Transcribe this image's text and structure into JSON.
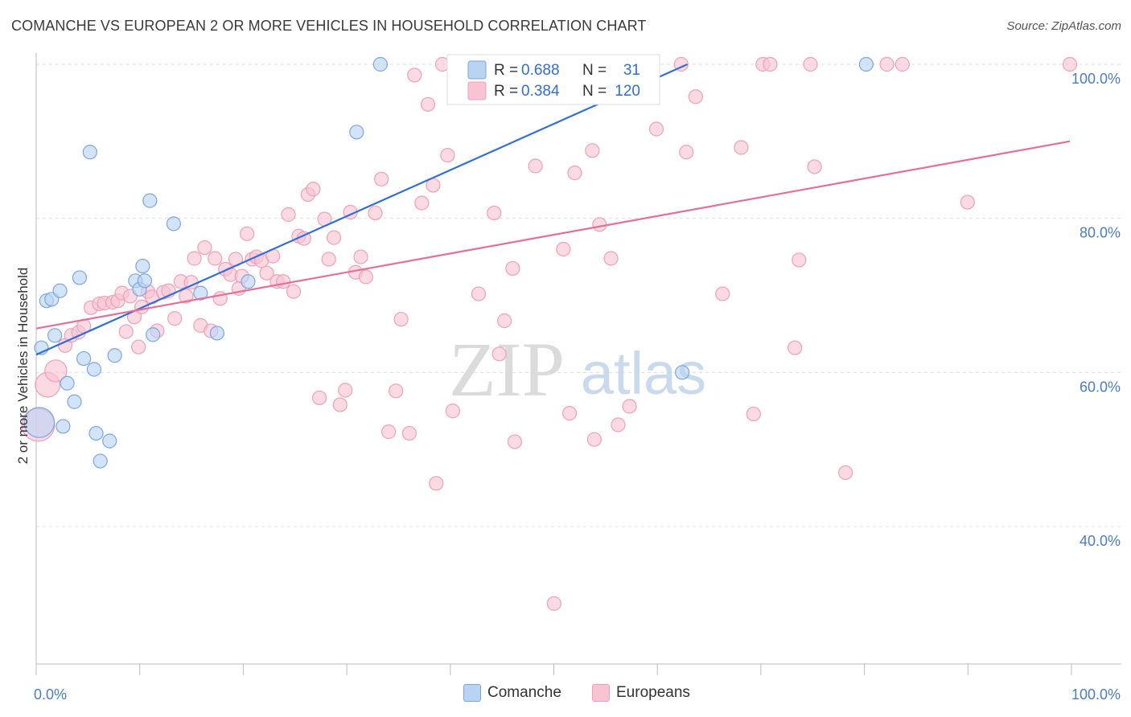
{
  "title": "COMANCHE VS EUROPEAN 2 OR MORE VEHICLES IN HOUSEHOLD CORRELATION CHART",
  "source": "Source: ZipAtlas.com",
  "watermark": {
    "zip": "ZIP",
    "atlas": "atlas"
  },
  "colors": {
    "comanche_fill": "#b9d3f3",
    "comanche_stroke": "#7aa6e0",
    "comanche_line": "#2f6fd6",
    "europeans_fill": "#f8c4d4",
    "europeans_stroke": "#eea0b8",
    "europeans_line": "#e4709a",
    "tick_label": "#4a7cc7",
    "grid": "#dddddd"
  },
  "stats": {
    "r_label": "R =",
    "n_label": "N =",
    "comanche": {
      "r": "0.688",
      "n": "31"
    },
    "europeans": {
      "r": "0.384",
      "n": "120"
    }
  },
  "chart_data": {
    "type": "scatter",
    "title": "COMANCHE VS EUROPEAN 2 OR MORE VEHICLES IN HOUSEHOLD CORRELATION CHART",
    "xlabel": "",
    "ylabel": "2 or more Vehicles in Household",
    "xlim": [
      0,
      105
    ],
    "ylim": [
      19,
      103
    ],
    "x_tick_labels": [
      {
        "value": 0,
        "label": "0.0%"
      },
      {
        "value": 100,
        "label": "100.0%"
      }
    ],
    "y_tick_labels": [
      {
        "value": 40,
        "label": "40.0%"
      },
      {
        "value": 60,
        "label": "60.0%"
      },
      {
        "value": 80,
        "label": "80.0%"
      },
      {
        "value": 100,
        "label": "100.0%"
      }
    ],
    "grid": true,
    "legend": "top-center and bottom",
    "series": [
      {
        "name": "Comanche",
        "trendline": {
          "x": [
            0,
            63
          ],
          "y": [
            62.3,
            100
          ]
        },
        "points": [
          [
            0.3,
            53.5,
            2.2
          ],
          [
            0.5,
            63.2,
            1
          ],
          [
            1.0,
            69.3,
            1
          ],
          [
            1.5,
            69.5,
            1
          ],
          [
            1.8,
            64.8,
            1
          ],
          [
            2.3,
            70.6,
            1
          ],
          [
            2.6,
            53.0,
            1
          ],
          [
            3.0,
            58.6,
            1
          ],
          [
            3.7,
            56.2,
            1
          ],
          [
            4.2,
            72.3,
            1
          ],
          [
            4.6,
            61.8,
            1
          ],
          [
            5.2,
            88.6,
            1
          ],
          [
            5.6,
            60.4,
            1
          ],
          [
            5.8,
            52.1,
            1
          ],
          [
            6.2,
            48.5,
            1
          ],
          [
            7.1,
            51.1,
            1
          ],
          [
            7.6,
            62.2,
            1
          ],
          [
            9.6,
            71.9,
            1
          ],
          [
            10.0,
            70.8,
            1
          ],
          [
            10.3,
            73.8,
            1
          ],
          [
            10.5,
            71.9,
            1
          ],
          [
            11.0,
            82.3,
            1
          ],
          [
            11.3,
            64.9,
            1
          ],
          [
            13.3,
            79.3,
            1
          ],
          [
            15.9,
            70.3,
            1
          ],
          [
            17.5,
            65.1,
            1
          ],
          [
            20.5,
            71.8,
            1
          ],
          [
            31.0,
            91.2,
            1
          ],
          [
            33.3,
            100.0,
            1
          ],
          [
            80.3,
            100.0,
            1
          ],
          [
            62.5,
            60.0,
            1
          ]
        ]
      },
      {
        "name": "Europeans",
        "trendline": {
          "x": [
            0,
            100
          ],
          "y": [
            65.7,
            90.0
          ]
        },
        "points": [
          [
            0.2,
            53.2,
            2.4
          ],
          [
            1.1,
            58.4,
            1.8
          ],
          [
            1.9,
            60.2,
            1.6
          ],
          [
            2.8,
            63.5,
            1
          ],
          [
            3.4,
            64.8,
            1
          ],
          [
            4.1,
            65.2,
            1
          ],
          [
            4.6,
            66.0,
            1
          ],
          [
            5.3,
            68.4,
            1
          ],
          [
            6.1,
            68.9,
            1
          ],
          [
            6.6,
            69.0,
            1
          ],
          [
            7.4,
            69.1,
            1
          ],
          [
            7.9,
            69.3,
            1
          ],
          [
            8.3,
            70.3,
            1
          ],
          [
            8.7,
            65.3,
            1
          ],
          [
            9.1,
            69.9,
            1
          ],
          [
            9.5,
            67.2,
            1
          ],
          [
            9.9,
            63.3,
            1
          ],
          [
            10.2,
            68.5,
            1
          ],
          [
            10.8,
            70.5,
            1
          ],
          [
            11.2,
            69.8,
            1
          ],
          [
            11.7,
            65.4,
            1
          ],
          [
            12.3,
            70.4,
            1
          ],
          [
            12.8,
            70.6,
            1
          ],
          [
            13.4,
            67.0,
            1
          ],
          [
            14.0,
            71.8,
            1
          ],
          [
            14.5,
            69.9,
            1
          ],
          [
            15.0,
            71.7,
            1
          ],
          [
            15.3,
            74.8,
            1
          ],
          [
            15.9,
            66.1,
            1
          ],
          [
            16.3,
            76.2,
            1
          ],
          [
            16.9,
            65.4,
            1
          ],
          [
            17.3,
            74.8,
            1
          ],
          [
            17.8,
            69.6,
            1
          ],
          [
            18.3,
            73.4,
            1
          ],
          [
            18.8,
            72.7,
            1
          ],
          [
            19.3,
            74.7,
            1
          ],
          [
            19.6,
            70.9,
            1
          ],
          [
            19.9,
            72.5,
            1
          ],
          [
            20.4,
            78.0,
            1
          ],
          [
            20.9,
            74.7,
            1
          ],
          [
            21.3,
            75.0,
            1
          ],
          [
            21.8,
            74.5,
            1
          ],
          [
            22.3,
            72.9,
            1
          ],
          [
            22.9,
            75.1,
            1
          ],
          [
            23.3,
            71.8,
            1
          ],
          [
            23.9,
            71.8,
            1
          ],
          [
            24.4,
            80.5,
            1
          ],
          [
            24.9,
            70.5,
            1
          ],
          [
            25.4,
            77.7,
            1
          ],
          [
            25.9,
            77.4,
            1
          ],
          [
            26.3,
            83.1,
            1
          ],
          [
            26.8,
            83.8,
            1
          ],
          [
            27.4,
            56.7,
            1
          ],
          [
            27.9,
            79.9,
            1
          ],
          [
            28.3,
            74.7,
            1
          ],
          [
            28.8,
            77.5,
            1
          ],
          [
            29.4,
            55.8,
            1
          ],
          [
            29.9,
            57.7,
            1
          ],
          [
            30.4,
            80.8,
            1
          ],
          [
            30.9,
            73.0,
            1
          ],
          [
            31.4,
            75.0,
            1
          ],
          [
            31.9,
            72.4,
            1
          ],
          [
            32.8,
            80.7,
            1
          ],
          [
            33.4,
            85.1,
            1
          ],
          [
            34.1,
            52.3,
            1
          ],
          [
            34.8,
            57.6,
            1
          ],
          [
            35.3,
            66.9,
            1
          ],
          [
            36.1,
            52.1,
            1
          ],
          [
            36.6,
            98.6,
            1
          ],
          [
            37.3,
            82.0,
            1
          ],
          [
            37.9,
            94.8,
            1
          ],
          [
            38.4,
            84.3,
            1
          ],
          [
            38.7,
            45.6,
            1
          ],
          [
            39.3,
            100.0,
            1
          ],
          [
            39.8,
            88.2,
            1
          ],
          [
            40.3,
            55.0,
            1
          ],
          [
            42.1,
            100.0,
            1
          ],
          [
            42.8,
            70.2,
            1
          ],
          [
            43.3,
            100.0,
            1
          ],
          [
            44.3,
            80.7,
            1
          ],
          [
            44.8,
            62.4,
            1
          ],
          [
            45.3,
            66.7,
            1
          ],
          [
            46.1,
            73.5,
            1
          ],
          [
            46.3,
            51.0,
            1
          ],
          [
            47.3,
            100.0,
            1
          ],
          [
            48.3,
            86.8,
            1
          ],
          [
            49.5,
            100.0,
            1
          ],
          [
            50.1,
            30.0,
            1
          ],
          [
            51.0,
            76.0,
            1
          ],
          [
            51.6,
            54.7,
            1
          ],
          [
            52.1,
            85.9,
            1
          ],
          [
            52.4,
            100.0,
            1
          ],
          [
            53.8,
            88.8,
            1
          ],
          [
            54.0,
            51.3,
            1
          ],
          [
            54.5,
            79.2,
            1
          ],
          [
            55.1,
            100.0,
            1
          ],
          [
            55.6,
            74.8,
            1
          ],
          [
            56.3,
            53.2,
            1
          ],
          [
            57.4,
            55.6,
            1
          ],
          [
            58.3,
            100.0,
            1
          ],
          [
            59.0,
            96.4,
            1
          ],
          [
            60.0,
            91.6,
            1
          ],
          [
            62.4,
            100.0,
            1
          ],
          [
            62.9,
            88.6,
            1
          ],
          [
            63.8,
            95.8,
            1
          ],
          [
            66.4,
            70.2,
            1
          ],
          [
            68.2,
            89.2,
            1
          ],
          [
            69.4,
            54.6,
            1
          ],
          [
            70.3,
            100.0,
            1
          ],
          [
            71.0,
            100.0,
            1
          ],
          [
            73.4,
            63.2,
            1
          ],
          [
            73.8,
            74.6,
            1
          ],
          [
            74.9,
            100.0,
            1
          ],
          [
            75.3,
            86.7,
            1
          ],
          [
            78.3,
            47.0,
            1
          ],
          [
            82.3,
            100.0,
            1
          ],
          [
            83.8,
            100.0,
            1
          ],
          [
            90.1,
            82.1,
            1
          ],
          [
            100.0,
            100.0,
            1
          ]
        ]
      }
    ]
  }
}
